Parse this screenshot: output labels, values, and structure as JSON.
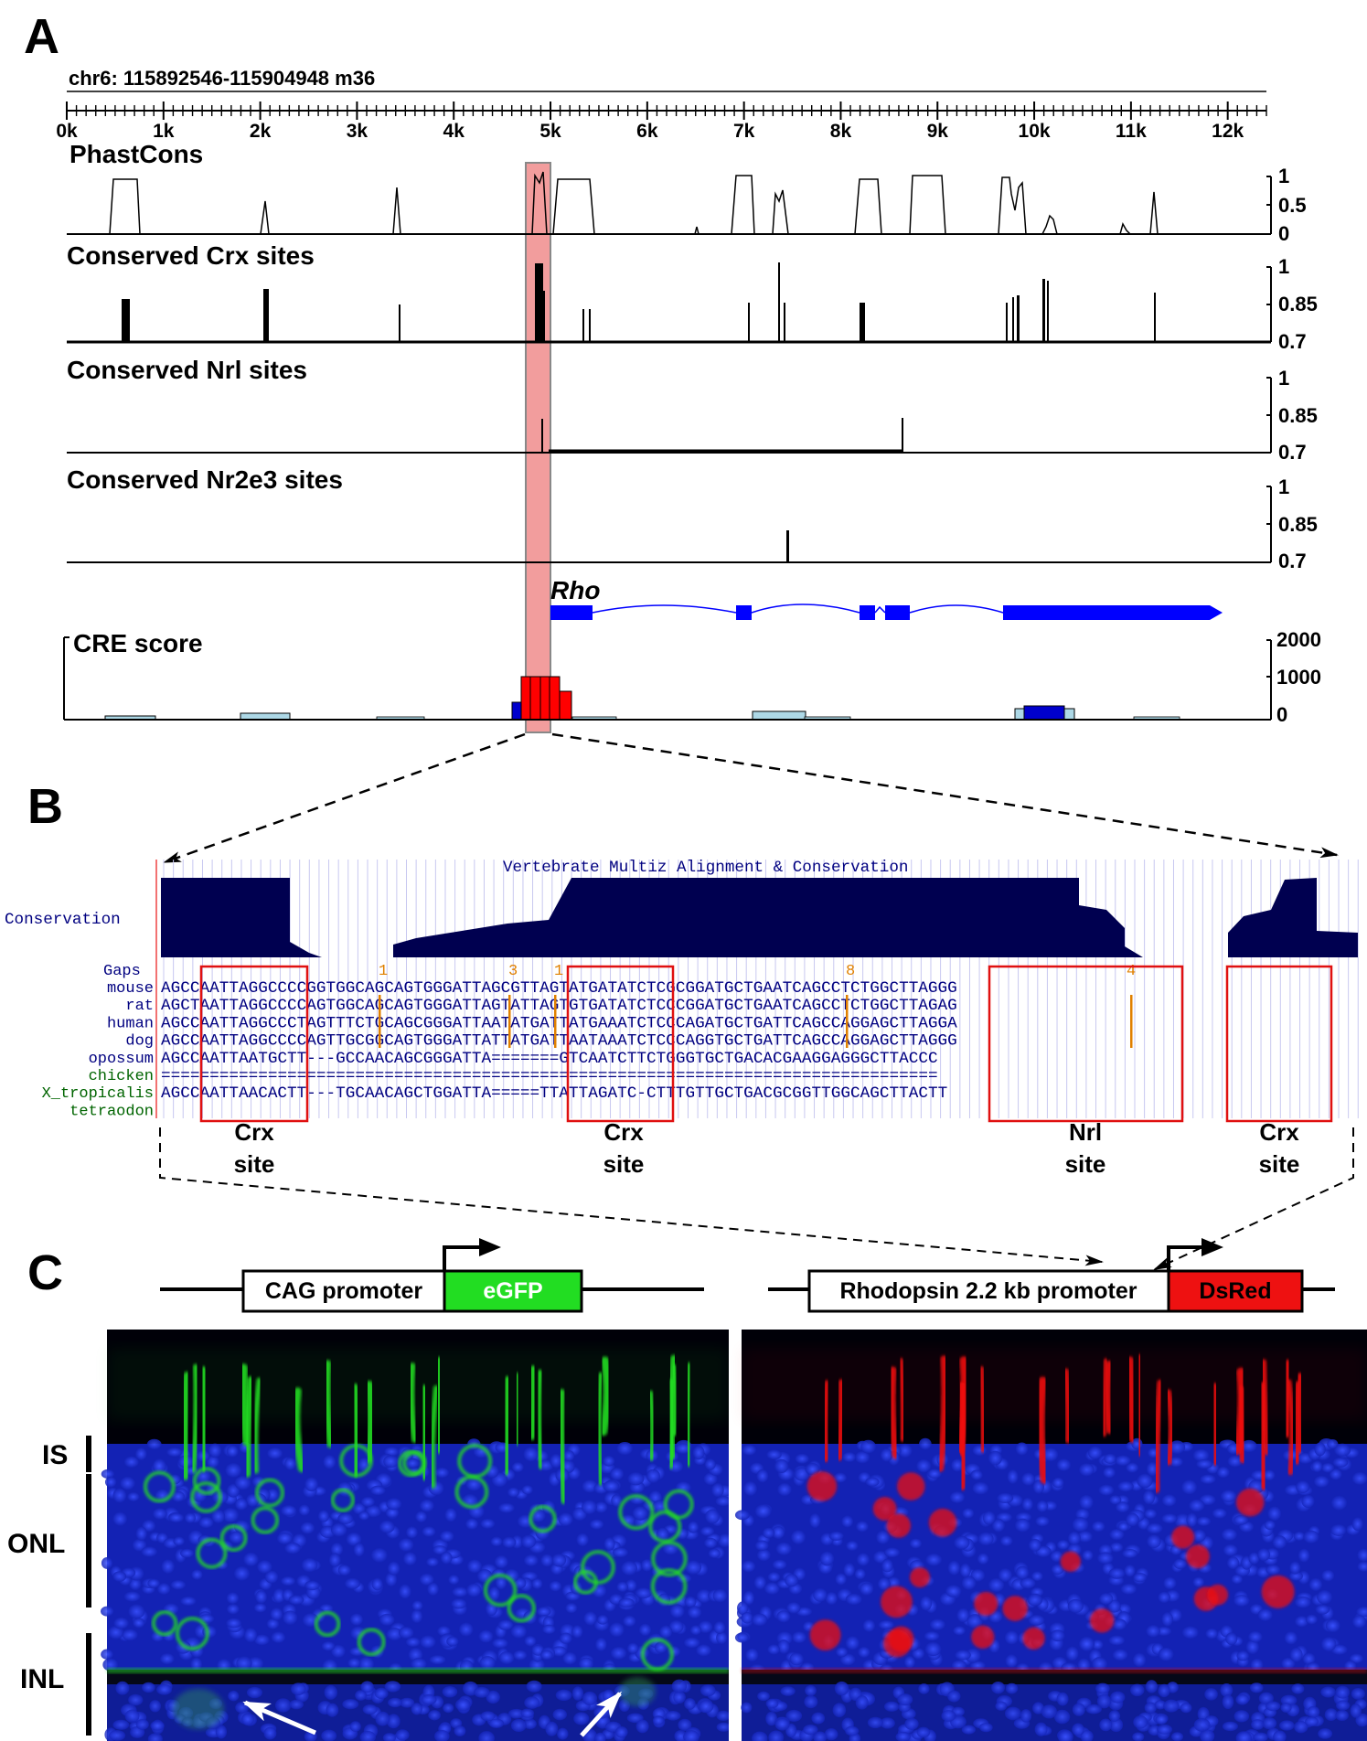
{
  "panels": {
    "a": "A",
    "b": "B",
    "c": "C"
  },
  "panel_a": {
    "coordinate_label": "chr6: 115892546-115904948 m36",
    "ruler_ticks": [
      "0k",
      "1k",
      "2k",
      "3k",
      "4k",
      "5k",
      "6k",
      "7k",
      "8k",
      "9k",
      "10k",
      "11k",
      "12k"
    ],
    "ruler_max_k": 12.4,
    "tracks": [
      {
        "title": "PhastCons",
        "axis": [
          "1",
          "0.5",
          "0"
        ]
      },
      {
        "title": "Conserved Crx sites",
        "axis": [
          "1",
          "0.85",
          "0.7"
        ]
      },
      {
        "title": "Conserved Nrl sites",
        "axis": [
          "1",
          "0.85",
          "0.7"
        ]
      },
      {
        "title": "Conserved Nr2e3 sites",
        "axis": [
          "1",
          "0.85",
          "0.7"
        ]
      }
    ],
    "gene_name": "Rho",
    "cre_title": "CRE score",
    "cre_axis": [
      "2000",
      "1000",
      "0"
    ],
    "colors": {
      "highlight": "#f08c8c",
      "gene": "#0000ff",
      "cre_high": "#ff0000",
      "cre_mid": "#0000cc",
      "cre_low": "#add8e6"
    }
  },
  "panel_b": {
    "title": "Vertebrate Multiz Alignment & Conservation",
    "conservation_label": "Conservation",
    "gaps_label": "Gaps",
    "gap_marks": [
      "1",
      "3",
      "1",
      "8",
      "4"
    ],
    "rows": [
      {
        "species": "mouse",
        "seq": "AGCCAATTAGGCCCCGGTGGCAGCAGTGGGATTAGCGTTAGTATGATATCTCGCGGATGCTGAATCAGCCTCTGGCTTAGGG"
      },
      {
        "species": "rat",
        "seq": "AGCTAATTAGGCCCCAGTGGCAGCAGTGGGATTAGTATTAGTGTGATATCTCCCGGATGCTGAATCAGCCTCTGGCTTAGAG"
      },
      {
        "species": "human",
        "seq": "AGCCAATTAGGCCCTAGTTTCTGCAGCGGGATTAATATGATTATGAAATCTCCCAGATGCTGATTCAGCCAGGAGCTTAGGA"
      },
      {
        "species": "dog",
        "seq": "AGCCAATTAGGCCCCAGTTGCGGCAGTGGGATTATTATGATTAATAAATCTCCCAGGTGCTGATTCAGCCAGGAGCTTAGGG"
      },
      {
        "species": "opossum",
        "seq": "AGCCAATTAATGCTT---GCCAACAGCGGGATTA=======GTCAATCTTCTGGGTGCTGACACGAAGGAGGGCTTACCC"
      },
      {
        "species": "chicken",
        "seq": "================================================================================"
      },
      {
        "species": "X_tropicalis",
        "seq": "AGCCAATTAACACTT---TGCAACAGCTGGATTA=====TTATTAGATC-CTTTGTTGCTGACGCGGTTGGCAGCTTACTT"
      },
      {
        "species": "tetraodon",
        "seq": ""
      }
    ],
    "sites": [
      {
        "label1": "Crx",
        "label2": "site"
      },
      {
        "label1": "Crx",
        "label2": "site"
      },
      {
        "label1": "Nrl",
        "label2": "site"
      },
      {
        "label1": "Crx",
        "label2": "site"
      }
    ],
    "colors": {
      "sequence": "#000080",
      "species_green": "#006400",
      "conservation": "#000050",
      "box": "#e01010",
      "gap_mark": "#e08000"
    }
  },
  "panel_c": {
    "construct_left": {
      "promoter": "CAG promoter",
      "reporter": "eGFP"
    },
    "construct_right": {
      "promoter": "Rhodopsin 2.2 kb promoter",
      "reporter": "DsRed"
    },
    "layers": [
      "IS",
      "ONL",
      "INL"
    ],
    "colors": {
      "egfp": "#22dd22",
      "dsred": "#ee1111",
      "nuclei": "#1a2ee0"
    }
  }
}
